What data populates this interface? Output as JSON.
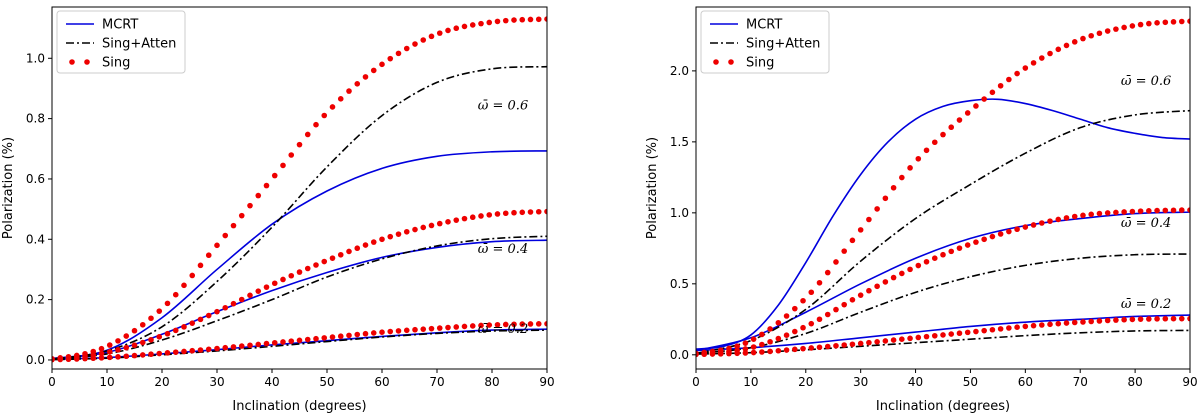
{
  "colors": {
    "mcrt": "#0000dd",
    "sing_atten": "#000000",
    "sing": "#ee0000"
  },
  "chart_data": [
    {
      "type": "line",
      "xlabel": "Inclination (degrees)",
      "ylabel": "Polarization (%)",
      "xlim": [
        0,
        90
      ],
      "ylim": [
        -0.03,
        1.17
      ],
      "xticks": [
        0,
        10,
        20,
        30,
        40,
        50,
        60,
        70,
        80,
        90
      ],
      "yticks": [
        0.0,
        0.2,
        0.4,
        0.6,
        0.8,
        1.0
      ],
      "ytick_labels": [
        "0.0",
        "0.2",
        "0.4",
        "0.6",
        "0.8",
        "1.0"
      ],
      "legend": {
        "position": "upper-left",
        "entries": [
          "MCRT",
          "Sing+Atten",
          "Sing"
        ]
      },
      "annotations": [
        {
          "text": "ω̄ = 0.6",
          "x": 82,
          "y": 0.83
        },
        {
          "text": "ω̄ = 0.4",
          "x": 82,
          "y": 0.355
        },
        {
          "text": "ω̄ = 0.2",
          "x": 82,
          "y": 0.09
        }
      ],
      "series": [
        {
          "name": "MCRT",
          "style": "solid",
          "group": "ω̄ = 0.6",
          "x": [
            0,
            10,
            20,
            30,
            40,
            50,
            60,
            70,
            80,
            90
          ],
          "values": [
            0.005,
            0.032,
            0.14,
            0.3,
            0.45,
            0.56,
            0.635,
            0.675,
            0.69,
            0.693
          ]
        },
        {
          "name": "MCRT",
          "style": "solid",
          "group": "ω̄ = 0.4",
          "x": [
            0,
            10,
            20,
            30,
            40,
            50,
            60,
            70,
            80,
            90
          ],
          "values": [
            0.004,
            0.025,
            0.085,
            0.16,
            0.23,
            0.29,
            0.34,
            0.373,
            0.392,
            0.397
          ]
        },
        {
          "name": "MCRT",
          "style": "solid",
          "group": "ω̄ = 0.2",
          "x": [
            0,
            10,
            20,
            30,
            40,
            50,
            60,
            70,
            80,
            90
          ],
          "values": [
            0.002,
            0.008,
            0.02,
            0.034,
            0.05,
            0.064,
            0.078,
            0.09,
            0.099,
            0.102
          ]
        },
        {
          "name": "Sing+Atten",
          "style": "dashdot",
          "group": "ω̄ = 0.6",
          "x": [
            0,
            10,
            20,
            30,
            40,
            50,
            60,
            70,
            80,
            90
          ],
          "values": [
            0.003,
            0.03,
            0.11,
            0.26,
            0.44,
            0.64,
            0.81,
            0.92,
            0.965,
            0.972
          ]
        },
        {
          "name": "Sing+Atten",
          "style": "dashdot",
          "group": "ω̄ = 0.4",
          "x": [
            0,
            10,
            20,
            30,
            40,
            50,
            60,
            70,
            80,
            90
          ],
          "values": [
            0.003,
            0.02,
            0.066,
            0.13,
            0.2,
            0.275,
            0.335,
            0.378,
            0.402,
            0.41
          ]
        },
        {
          "name": "Sing+Atten",
          "style": "dashdot",
          "group": "ω̄ = 0.2",
          "x": [
            0,
            10,
            20,
            30,
            40,
            50,
            60,
            70,
            80,
            90
          ],
          "values": [
            0.001,
            0.006,
            0.017,
            0.03,
            0.045,
            0.061,
            0.076,
            0.088,
            0.096,
            0.099
          ]
        },
        {
          "name": "Sing",
          "style": "dots",
          "group": "ω̄ = 0.6",
          "x": [
            0,
            10,
            20,
            30,
            40,
            50,
            60,
            70,
            80,
            90
          ],
          "values": [
            0.004,
            0.045,
            0.17,
            0.38,
            0.6,
            0.82,
            0.98,
            1.08,
            1.12,
            1.13
          ]
        },
        {
          "name": "Sing",
          "style": "dots",
          "group": "ω̄ = 0.4",
          "x": [
            0,
            10,
            20,
            30,
            40,
            50,
            60,
            70,
            80,
            90
          ],
          "values": [
            0.003,
            0.025,
            0.08,
            0.16,
            0.25,
            0.33,
            0.4,
            0.45,
            0.482,
            0.492
          ]
        },
        {
          "name": "Sing",
          "style": "dots",
          "group": "ω̄ = 0.2",
          "x": [
            0,
            10,
            20,
            30,
            40,
            50,
            60,
            70,
            80,
            90
          ],
          "values": [
            0.001,
            0.008,
            0.022,
            0.038,
            0.056,
            0.074,
            0.092,
            0.105,
            0.116,
            0.12
          ]
        }
      ]
    },
    {
      "type": "line",
      "xlabel": "Inclination (degrees)",
      "ylabel": "Polarization (%)",
      "xlim": [
        0,
        90
      ],
      "ylim": [
        -0.1,
        2.45
      ],
      "xticks": [
        0,
        10,
        20,
        30,
        40,
        50,
        60,
        70,
        80,
        90
      ],
      "yticks": [
        0.0,
        0.5,
        1.0,
        1.5,
        2.0
      ],
      "ytick_labels": [
        "0.0",
        "0.5",
        "1.0",
        "1.5",
        "2.0"
      ],
      "legend": {
        "position": "upper-left",
        "entries": [
          "MCRT",
          "Sing+Atten",
          "Sing"
        ]
      },
      "annotations": [
        {
          "text": "ω̄ = 0.6",
          "x": 82,
          "y": 1.9
        },
        {
          "text": "ω̄ = 0.4",
          "x": 82,
          "y": 0.9
        },
        {
          "text": "ω̄ = 0.2",
          "x": 82,
          "y": 0.33
        }
      ],
      "series": [
        {
          "name": "MCRT",
          "style": "solid",
          "group": "ω̄ = 0.6",
          "x": [
            0,
            5,
            10,
            15,
            20,
            25,
            30,
            35,
            40,
            45,
            50,
            55,
            60,
            65,
            70,
            75,
            80,
            85,
            90
          ],
          "values": [
            0.04,
            0.06,
            0.14,
            0.35,
            0.65,
            0.98,
            1.27,
            1.5,
            1.66,
            1.75,
            1.79,
            1.8,
            1.77,
            1.72,
            1.66,
            1.6,
            1.56,
            1.53,
            1.52
          ]
        },
        {
          "name": "MCRT",
          "style": "solid",
          "group": "ω̄ = 0.4",
          "x": [
            0,
            10,
            20,
            30,
            40,
            50,
            60,
            70,
            80,
            90
          ],
          "values": [
            0.03,
            0.12,
            0.3,
            0.5,
            0.68,
            0.82,
            0.91,
            0.96,
            0.995,
            1.005
          ]
        },
        {
          "name": "MCRT",
          "style": "solid",
          "group": "ω̄ = 0.2",
          "x": [
            0,
            10,
            20,
            30,
            40,
            50,
            60,
            70,
            80,
            90
          ],
          "values": [
            0.03,
            0.05,
            0.08,
            0.12,
            0.16,
            0.2,
            0.23,
            0.25,
            0.27,
            0.28
          ]
        },
        {
          "name": "Sing+Atten",
          "style": "dashdot",
          "group": "ω̄ = 0.6",
          "x": [
            0,
            10,
            20,
            30,
            40,
            50,
            60,
            70,
            80,
            90
          ],
          "values": [
            0.01,
            0.1,
            0.32,
            0.66,
            0.96,
            1.2,
            1.42,
            1.6,
            1.69,
            1.72
          ]
        },
        {
          "name": "Sing+Atten",
          "style": "dashdot",
          "group": "ω̄ = 0.4",
          "x": [
            0,
            10,
            20,
            30,
            40,
            50,
            60,
            70,
            80,
            90
          ],
          "values": [
            0.01,
            0.05,
            0.15,
            0.3,
            0.44,
            0.55,
            0.63,
            0.68,
            0.705,
            0.71
          ]
        },
        {
          "name": "Sing+Atten",
          "style": "dashdot",
          "group": "ω̄ = 0.2",
          "x": [
            0,
            10,
            20,
            30,
            40,
            50,
            60,
            70,
            80,
            90
          ],
          "values": [
            0.005,
            0.015,
            0.035,
            0.06,
            0.085,
            0.11,
            0.135,
            0.155,
            0.168,
            0.172
          ]
        },
        {
          "name": "Sing",
          "style": "dots",
          "group": "ω̄ = 0.6",
          "x": [
            0,
            10,
            20,
            30,
            40,
            50,
            60,
            70,
            80,
            90
          ],
          "values": [
            0.01,
            0.1,
            0.4,
            0.88,
            1.36,
            1.72,
            2.02,
            2.22,
            2.32,
            2.35
          ]
        },
        {
          "name": "Sing",
          "style": "dots",
          "group": "ω̄ = 0.4",
          "x": [
            0,
            10,
            20,
            30,
            40,
            50,
            60,
            70,
            80,
            90
          ],
          "values": [
            0.005,
            0.05,
            0.2,
            0.42,
            0.62,
            0.78,
            0.9,
            0.98,
            1.01,
            1.02
          ]
        },
        {
          "name": "Sing",
          "style": "dots",
          "group": "ω̄ = 0.2",
          "x": [
            0,
            10,
            20,
            30,
            40,
            50,
            60,
            70,
            80,
            90
          ],
          "values": [
            0.003,
            0.015,
            0.045,
            0.08,
            0.12,
            0.16,
            0.2,
            0.23,
            0.25,
            0.255
          ]
        }
      ]
    }
  ]
}
